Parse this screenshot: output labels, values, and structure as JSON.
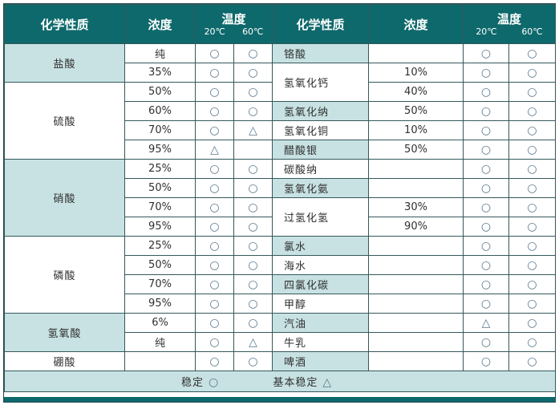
{
  "colors": {
    "header_bg": "#0e696c",
    "shaded_cell_bg": "#c8e2e3",
    "grid_border": "#35585b",
    "symbol_color": "#5a788c",
    "text_color": "#303030",
    "header_text": "#ffffff"
  },
  "header": {
    "chemical_label": "化学性质",
    "concentration_label": "浓度",
    "temperature_label": "温度",
    "temp_20": "20℃",
    "temp_60": "60℃"
  },
  "legend": {
    "stable_label": "稳定",
    "stable_symbol": "○",
    "basically_stable_label": "基本稳定",
    "basically_stable_symbol": "△"
  },
  "table": {
    "left_groups": [
      {
        "name": "盐酸",
        "shaded": true,
        "rows": [
          {
            "conc": "纯",
            "t20": "○",
            "t60": "○"
          },
          {
            "conc": "35%",
            "t20": "○",
            "t60": "○"
          }
        ]
      },
      {
        "name": "硫酸",
        "shaded": false,
        "rows": [
          {
            "conc": "50%",
            "t20": "○",
            "t60": "○"
          },
          {
            "conc": "60%",
            "t20": "○",
            "t60": "○"
          },
          {
            "conc": "70%",
            "t20": "○",
            "t60": "△"
          },
          {
            "conc": "95%",
            "t20": "△",
            "t60": ""
          }
        ]
      },
      {
        "name": "硝酸",
        "shaded": true,
        "rows": [
          {
            "conc": "25%",
            "t20": "○",
            "t60": "○"
          },
          {
            "conc": "50%",
            "t20": "○",
            "t60": "○"
          },
          {
            "conc": "70%",
            "t20": "○",
            "t60": "○"
          },
          {
            "conc": "95%",
            "t20": "○",
            "t60": "○"
          }
        ]
      },
      {
        "name": "磷酸",
        "shaded": false,
        "rows": [
          {
            "conc": "25%",
            "t20": "○",
            "t60": "○"
          },
          {
            "conc": "50%",
            "t20": "○",
            "t60": "○"
          },
          {
            "conc": "70%",
            "t20": "○",
            "t60": "○"
          },
          {
            "conc": "95%",
            "t20": "○",
            "t60": "○"
          }
        ]
      },
      {
        "name": "氢氧酸",
        "shaded": true,
        "rows": [
          {
            "conc": "6%",
            "t20": "○",
            "t60": "○"
          },
          {
            "conc": "纯",
            "t20": "○",
            "t60": "△"
          }
        ]
      },
      {
        "name": "硼酸",
        "shaded": false,
        "rows": [
          {
            "conc": "",
            "t20": "○",
            "t60": "○"
          }
        ]
      }
    ],
    "right_groups": [
      {
        "name": "铬酸",
        "shaded": true,
        "rows": [
          {
            "conc": "",
            "t20": "○",
            "t60": "○"
          }
        ]
      },
      {
        "name": "氢氧化钙",
        "shaded": false,
        "rows": [
          {
            "conc": "10%",
            "t20": "○",
            "t60": "○"
          },
          {
            "conc": "40%",
            "t20": "○",
            "t60": "○"
          }
        ]
      },
      {
        "name": "氢氧化纳",
        "shaded": true,
        "rows": [
          {
            "conc": "50%",
            "t20": "○",
            "t60": "○"
          }
        ]
      },
      {
        "name": "氢氧化铜",
        "shaded": false,
        "rows": [
          {
            "conc": "10%",
            "t20": "○",
            "t60": "○"
          }
        ]
      },
      {
        "name": "醋酸银",
        "shaded": true,
        "rows": [
          {
            "conc": "50%",
            "t20": "○",
            "t60": "○"
          }
        ]
      },
      {
        "name": "碳酸纳",
        "shaded": false,
        "rows": [
          {
            "conc": "",
            "t20": "○",
            "t60": "○"
          }
        ]
      },
      {
        "name": "氢氧化氨",
        "shaded": true,
        "rows": [
          {
            "conc": "",
            "t20": "○",
            "t60": "○"
          }
        ]
      },
      {
        "name": "过氢化氢",
        "shaded": false,
        "rows": [
          {
            "conc": "30%",
            "t20": "○",
            "t60": "○"
          },
          {
            "conc": "90%",
            "t20": "○",
            "t60": "○"
          }
        ]
      },
      {
        "name": "氯水",
        "shaded": true,
        "rows": [
          {
            "conc": "",
            "t20": "○",
            "t60": "○"
          }
        ]
      },
      {
        "name": "海水",
        "shaded": false,
        "rows": [
          {
            "conc": "",
            "t20": "○",
            "t60": "○"
          }
        ]
      },
      {
        "name": "四氯化碳",
        "shaded": true,
        "rows": [
          {
            "conc": "",
            "t20": "○",
            "t60": "○"
          }
        ]
      },
      {
        "name": "甲醇",
        "shaded": false,
        "rows": [
          {
            "conc": "",
            "t20": "○",
            "t60": "○"
          }
        ]
      },
      {
        "name": "汽油",
        "shaded": true,
        "rows": [
          {
            "conc": "",
            "t20": "△",
            "t60": "○"
          }
        ]
      },
      {
        "name": "牛乳",
        "shaded": false,
        "rows": [
          {
            "conc": "",
            "t20": "○",
            "t60": "○"
          }
        ]
      },
      {
        "name": "啤酒",
        "shaded": true,
        "rows": [
          {
            "conc": "",
            "t20": "○",
            "t60": "○"
          }
        ]
      }
    ]
  }
}
